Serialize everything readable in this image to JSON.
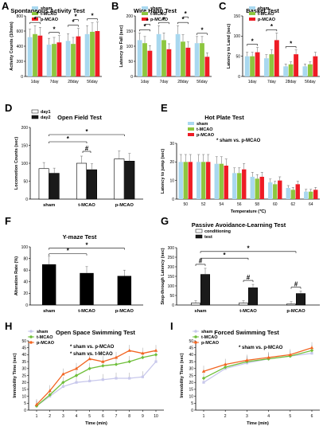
{
  "colors": {
    "sham": "#a9d8ef",
    "t-MCAO": "#8dc63f",
    "p-MCAO": "#ee1c25",
    "day1": "#ffffff",
    "day2": "#1a1a1a",
    "black": "#000000",
    "lavender": "#c8c8ec",
    "green": "#6fbf3a",
    "orange": "#f26522"
  },
  "chart_data": [
    {
      "panel": "A",
      "type": "bar",
      "title": "Spontaneous Activity Test",
      "ylabel": "Activity Counts (10min)",
      "ylim": [
        0,
        800
      ],
      "yticks": [
        0,
        200,
        400,
        600,
        800
      ],
      "categories": [
        "1day",
        "7day",
        "28day",
        "56day"
      ],
      "series": [
        {
          "name": "sham",
          "values": [
            520,
            420,
            470,
            560
          ]
        },
        {
          "name": "t-MCAO",
          "values": [
            560,
            430,
            430,
            590
          ]
        },
        {
          "name": "p-MCAO",
          "values": [
            540,
            450,
            530,
            600
          ]
        }
      ],
      "significance": [
        "*",
        "*",
        "*",
        "*",
        "*",
        "*",
        "*"
      ]
    },
    {
      "panel": "B",
      "type": "bar",
      "title": "Wire Hang Test",
      "ylabel": "Latency to Fall (sec)",
      "ylim": [
        0,
        200
      ],
      "yticks": [
        0,
        50,
        100,
        150,
        200
      ],
      "categories": [
        "1day",
        "7day",
        "28day",
        "56day"
      ],
      "series": [
        {
          "name": "sham",
          "values": [
            120,
            140,
            140,
            110
          ]
        },
        {
          "name": "t-MCAO",
          "values": [
            110,
            120,
            115,
            110
          ]
        },
        {
          "name": "p-MCAO",
          "values": [
            85,
            90,
            95,
            65
          ]
        }
      ],
      "significance": [
        "*",
        "*",
        "*",
        "*",
        "*",
        "*"
      ]
    },
    {
      "panel": "C",
      "type": "bar",
      "title": "Basket Test",
      "ylabel": "Latency to Land (sec)",
      "ylim": [
        0,
        150
      ],
      "yticks": [
        0,
        50,
        100,
        150
      ],
      "categories": [
        "1day",
        "7day",
        "28day",
        "56day"
      ],
      "series": [
        {
          "name": "sham",
          "values": [
            50,
            45,
            25,
            25
          ]
        },
        {
          "name": "t-MCAO",
          "values": [
            50,
            55,
            30,
            30
          ]
        },
        {
          "name": "p-MCAO",
          "values": [
            60,
            90,
            55,
            50
          ]
        }
      ],
      "significance": [
        "*",
        "*",
        "*"
      ]
    },
    {
      "panel": "D",
      "type": "bar",
      "title": "Open Field Test",
      "ylabel": "Locomotion Counts (sec)",
      "ylim": [
        0,
        200
      ],
      "yticks": [
        0,
        50,
        100,
        150,
        200
      ],
      "categories": [
        "sham",
        "t-MCAO",
        "p-MCAO"
      ],
      "series": [
        {
          "name": "day1",
          "values": [
            85,
            100,
            112
          ]
        },
        {
          "name": "day2",
          "values": [
            72,
            82,
            106
          ]
        }
      ],
      "significance": [
        "*",
        "#",
        "*"
      ]
    },
    {
      "panel": "E",
      "type": "bar",
      "title": "Hot Plate Test",
      "xlabel": "Temperature (℃)",
      "ylabel": "Latency to jump (sec)",
      "ylim": [
        0,
        30
      ],
      "yticks": [
        0,
        10,
        20,
        30
      ],
      "categories": [
        "50",
        "52",
        "54",
        "56",
        "58",
        "60",
        "62",
        "64"
      ],
      "series": [
        {
          "name": "sham",
          "values": [
            20,
            20,
            19,
            14,
            12,
            9,
            6,
            4
          ]
        },
        {
          "name": "t-MCAO",
          "values": [
            20,
            20,
            19,
            14,
            11,
            8,
            5,
            4
          ]
        },
        {
          "name": "p-MCAO",
          "values": [
            20,
            20,
            18,
            16,
            12,
            10,
            8,
            5
          ]
        }
      ],
      "annotation": "sham vs. p-MCAO"
    },
    {
      "panel": "F",
      "type": "bar",
      "title": "Y-maze Test",
      "ylabel": "Alteration Rate (%)",
      "ylim": [
        0,
        100
      ],
      "yticks": [
        0,
        20,
        40,
        60,
        80,
        100
      ],
      "categories": [
        "sham",
        "t-MCAO",
        "p-MCAO"
      ],
      "values": [
        70,
        55,
        50
      ],
      "significance": [
        "*",
        "*"
      ]
    },
    {
      "panel": "G",
      "type": "bar",
      "title": "Passive Avoidance-Learning Test",
      "ylabel": "Step-through Latency (sec)",
      "ylim": [
        0,
        300
      ],
      "yticks": [
        0,
        50,
        100,
        150,
        200,
        250,
        300
      ],
      "categories": [
        "sham",
        "t-MCAO",
        "p-MCAO"
      ],
      "series": [
        {
          "name": "conditioning",
          "values": [
            10,
            10,
            5
          ]
        },
        {
          "name": "test",
          "values": [
            160,
            90,
            60
          ]
        }
      ],
      "significance": [
        "#",
        "#",
        "#",
        "*",
        "*"
      ]
    },
    {
      "panel": "H",
      "type": "line",
      "title": "Open Space Swimming Test",
      "xlabel": "Time (min)",
      "ylabel": "Immobility Time (sec)",
      "ylim": [
        0,
        50
      ],
      "yticks": [
        0,
        5,
        10,
        15,
        20,
        25,
        30,
        35,
        40,
        45,
        50
      ],
      "x": [
        1,
        2,
        3,
        4,
        5,
        6,
        7,
        8,
        9,
        10
      ],
      "series": [
        {
          "name": "sham",
          "values": [
            3,
            10,
            17,
            20,
            21,
            22,
            23,
            23,
            24,
            35
          ]
        },
        {
          "name": "t-MCAO",
          "values": [
            3,
            11,
            20,
            25,
            30,
            32,
            33,
            35,
            38,
            40
          ]
        },
        {
          "name": "p-MCAO",
          "values": [
            4,
            14,
            26,
            30,
            37,
            35,
            38,
            43,
            41,
            43
          ]
        }
      ],
      "annotations": [
        "sham vs. p-MCAO",
        "sham vs. t-MCAO"
      ]
    },
    {
      "panel": "I",
      "type": "line",
      "title": "Forced Swimming Test",
      "xlabel": "Time (min)",
      "ylabel": "Immobility Time (sec)",
      "ylim": [
        0,
        50
      ],
      "yticks": [
        0,
        5,
        10,
        15,
        20,
        25,
        30,
        35,
        40,
        45,
        50
      ],
      "x": [
        1,
        2,
        3,
        4,
        5,
        6
      ],
      "series": [
        {
          "name": "sham",
          "values": [
            20,
            30,
            34,
            37,
            39,
            41
          ]
        },
        {
          "name": "t-MCAO",
          "values": [
            23,
            31,
            35,
            37,
            39,
            43
          ]
        },
        {
          "name": "p-MCAO",
          "values": [
            28,
            33,
            36,
            38,
            40,
            45
          ]
        }
      ],
      "annotation": "sham vs. p-MCAO"
    }
  ]
}
